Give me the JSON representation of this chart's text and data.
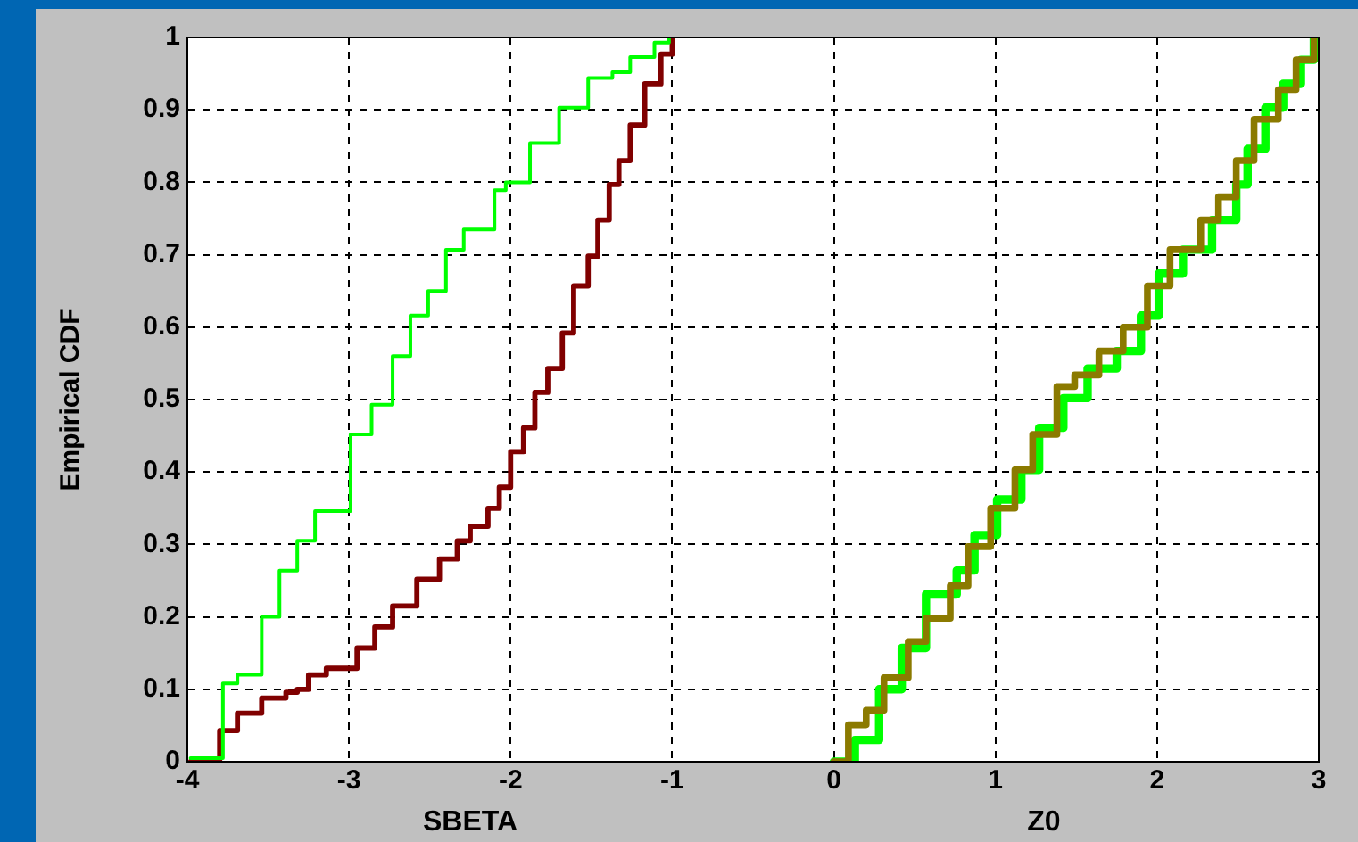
{
  "chart_data": {
    "type": "step",
    "xlabel": "SBETA",
    "ylabel": "Empirical CDF",
    "annotations": [
      "Z0"
    ],
    "xlim": [
      -4,
      3
    ],
    "xticks": [
      -4,
      -3,
      -2,
      -1,
      0,
      1,
      2,
      3
    ],
    "ylim": [
      0,
      1
    ],
    "yticks": [
      0,
      0.1,
      0.2,
      0.3,
      0.4,
      0.5,
      0.6,
      0.7,
      0.8,
      0.9,
      1
    ],
    "grid": true,
    "legend": false,
    "marker": "none",
    "line_style": "solid",
    "series": [
      {
        "color": "#00ff00",
        "x": [
          -3.98,
          -3.78,
          -3.69,
          -3.54,
          -3.43,
          -3.32,
          -3.21,
          -2.99,
          -2.86,
          -2.73,
          -2.62,
          -2.51,
          -2.4,
          -2.29,
          -2.1,
          -2.03,
          -1.88,
          -1.7,
          -1.52,
          -1.37,
          -1.26,
          -1.11,
          -1.02
        ],
        "values": [
          0.005,
          0.108,
          0.12,
          0.2,
          0.264,
          0.305,
          0.346,
          0.452,
          0.493,
          0.56,
          0.616,
          0.65,
          0.707,
          0.735,
          0.789,
          0.8,
          0.854,
          0.903,
          0.944,
          0.952,
          0.973,
          0.993,
          1
        ]
      },
      {
        "color": "#800000",
        "x": [
          -3.98,
          -3.8,
          -3.69,
          -3.54,
          -3.39,
          -3.32,
          -3.25,
          -3.14,
          -2.95,
          -2.84,
          -2.73,
          -2.58,
          -2.44,
          -2.33,
          -2.25,
          -2.14,
          -2.07,
          -2,
          -1.92,
          -1.85,
          -1.77,
          -1.68,
          -1.61,
          -1.52,
          -1.46,
          -1.39,
          -1.33,
          -1.26,
          -1.17,
          -1.07,
          -1
        ],
        "values": [
          0,
          0.043,
          0.067,
          0.088,
          0.096,
          0.1,
          0.12,
          0.129,
          0.157,
          0.186,
          0.215,
          0.252,
          0.28,
          0.305,
          0.325,
          0.35,
          0.379,
          0.428,
          0.461,
          0.51,
          0.543,
          0.592,
          0.657,
          0.698,
          0.748,
          0.797,
          0.83,
          0.879,
          0.936,
          0.977,
          1
        ]
      },
      {
        "color": "#8b7a00",
        "x": [
          0,
          0.09,
          0.2,
          0.31,
          0.46,
          0.57,
          0.72,
          0.83,
          0.97,
          1.12,
          1.23,
          1.38,
          1.49,
          1.64,
          1.79,
          1.94,
          2.08,
          2.27,
          2.38,
          2.49,
          2.6,
          2.75,
          2.86,
          2.97
        ],
        "values": [
          0,
          0.051,
          0.071,
          0.116,
          0.166,
          0.198,
          0.243,
          0.297,
          0.35,
          0.403,
          0.452,
          0.518,
          0.534,
          0.567,
          0.6,
          0.657,
          0.707,
          0.748,
          0.78,
          0.83,
          0.887,
          0.928,
          0.969,
          0.998
        ]
      },
      {
        "color": "#00ff00",
        "x": [
          0,
          0.13,
          0.28,
          0.42,
          0.57,
          0.76,
          0.87,
          1.01,
          1.16,
          1.27,
          1.42,
          1.57,
          1.75,
          1.9,
          2.01,
          2.16,
          2.34,
          2.49,
          2.56,
          2.67,
          2.78,
          2.89,
          2.97
        ],
        "values": [
          0,
          0.03,
          0.1,
          0.157,
          0.231,
          0.264,
          0.313,
          0.362,
          0.403,
          0.461,
          0.502,
          0.543,
          0.567,
          0.616,
          0.674,
          0.707,
          0.748,
          0.797,
          0.846,
          0.903,
          0.936,
          0.969,
          1
        ]
      }
    ]
  }
}
